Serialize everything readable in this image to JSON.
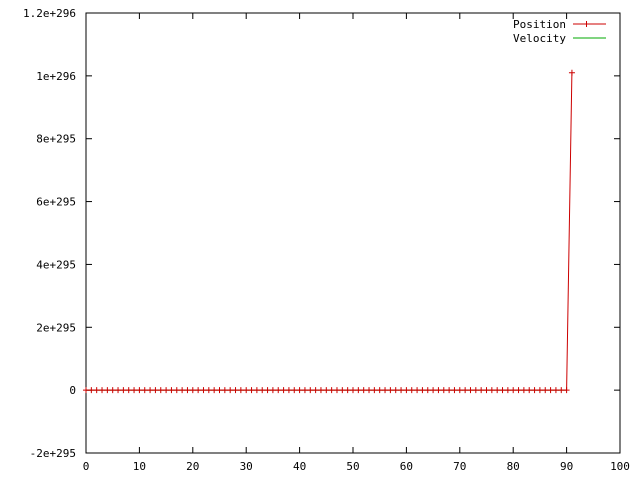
{
  "chart_data": {
    "type": "line",
    "title": "",
    "xlabel": "",
    "ylabel": "",
    "xlim": [
      0,
      100
    ],
    "ylim": [
      -2e+295,
      1.2e+296
    ],
    "x_ticks": [
      0,
      10,
      20,
      30,
      40,
      50,
      60,
      70,
      80,
      90,
      100
    ],
    "x_tick_labels": [
      "0",
      "10",
      "20",
      "30",
      "40",
      "50",
      "60",
      "70",
      "80",
      "90",
      "100"
    ],
    "y_ticks": [
      -2e+295,
      0,
      2e+295,
      4e+295,
      6e+295,
      8e+295,
      1e+296,
      1.2e+296
    ],
    "y_tick_labels": [
      "-2e+295",
      "0",
      "2e+295",
      "4e+295",
      "6e+295",
      "8e+295",
      "1e+296",
      "1.2e+296"
    ],
    "grid": false,
    "legend_position": "top-right",
    "series": [
      {
        "name": "Position",
        "color": "#cc0000",
        "marker": "plus",
        "x": [
          0,
          1,
          2,
          3,
          4,
          5,
          6,
          7,
          8,
          9,
          10,
          11,
          12,
          13,
          14,
          15,
          16,
          17,
          18,
          19,
          20,
          21,
          22,
          23,
          24,
          25,
          26,
          27,
          28,
          29,
          30,
          31,
          32,
          33,
          34,
          35,
          36,
          37,
          38,
          39,
          40,
          41,
          42,
          43,
          44,
          45,
          46,
          47,
          48,
          49,
          50,
          51,
          52,
          53,
          54,
          55,
          56,
          57,
          58,
          59,
          60,
          61,
          62,
          63,
          64,
          65,
          66,
          67,
          68,
          69,
          70,
          71,
          72,
          73,
          74,
          75,
          76,
          77,
          78,
          79,
          80,
          81,
          82,
          83,
          84,
          85,
          86,
          87,
          88,
          89,
          90,
          91
        ],
        "y": [
          0,
          0,
          0,
          0,
          0,
          0,
          0,
          0,
          0,
          0,
          0,
          0,
          0,
          0,
          0,
          0,
          0,
          0,
          0,
          0,
          0,
          0,
          0,
          0,
          0,
          0,
          0,
          0,
          0,
          0,
          0,
          0,
          0,
          0,
          0,
          0,
          0,
          0,
          0,
          0,
          0,
          0,
          0,
          0,
          0,
          0,
          0,
          0,
          0,
          0,
          0,
          0,
          0,
          0,
          0,
          0,
          0,
          0,
          0,
          0,
          0,
          0,
          0,
          0,
          0,
          0,
          0,
          0,
          0,
          0,
          0,
          0,
          0,
          0,
          0,
          0,
          0,
          0,
          0,
          0,
          0,
          0,
          0,
          0,
          0,
          0,
          0,
          0,
          0,
          0,
          0,
          1.01e+296
        ]
      },
      {
        "name": "Velocity",
        "color": "#00aa00",
        "marker": "none",
        "x": [
          0,
          90
        ],
        "y": [
          0,
          0
        ]
      }
    ]
  }
}
